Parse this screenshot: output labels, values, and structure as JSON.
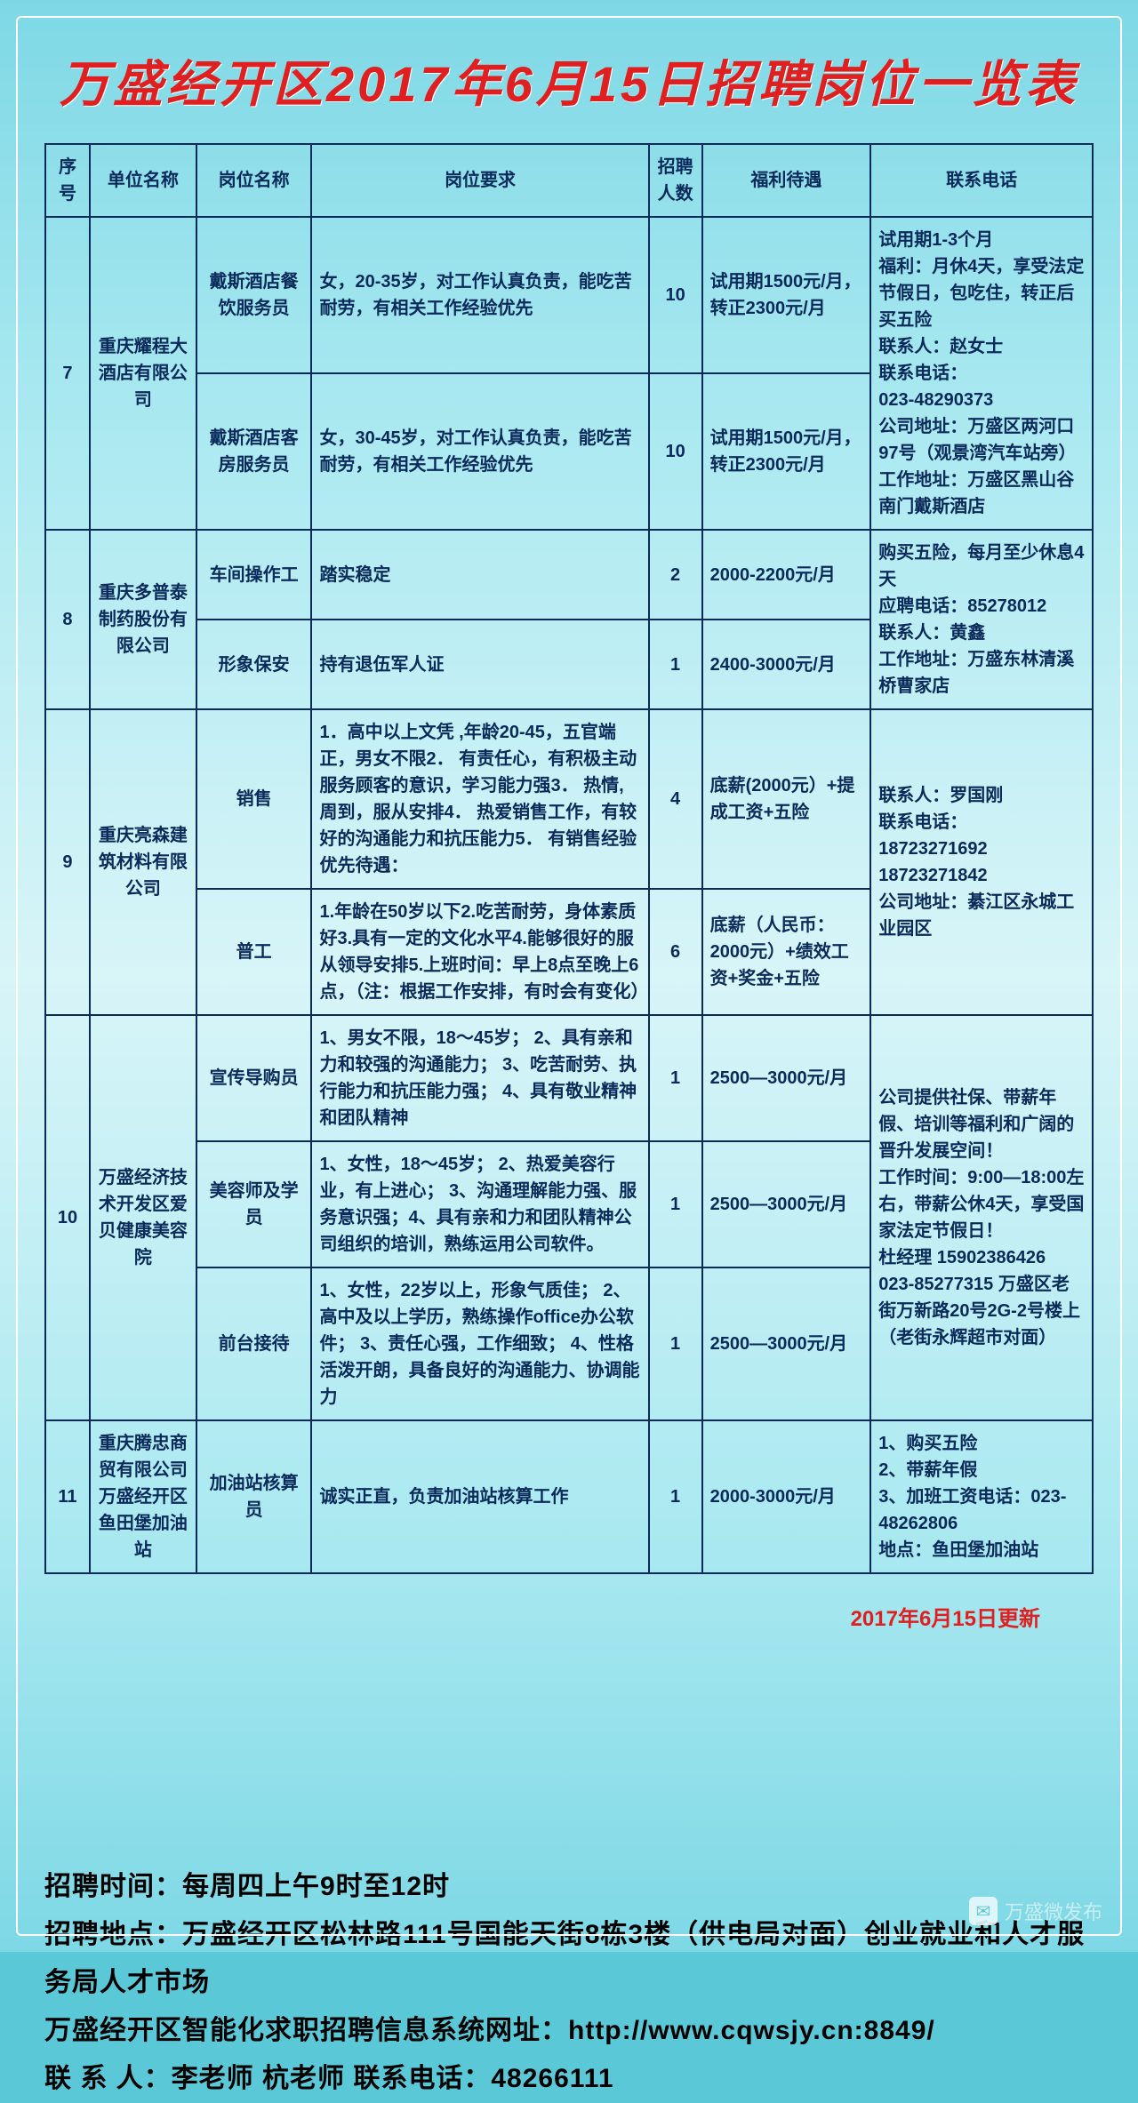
{
  "title": "万盛经开区2017年6月15日招聘岗位一览表",
  "headers": {
    "seq": "序号",
    "company": "单位名称",
    "position": "岗位名称",
    "requirement": "岗位要求",
    "count": "招聘人数",
    "salary": "福利待遇",
    "contact": "联系电话"
  },
  "rows": [
    {
      "seq": "7",
      "company": "重庆耀程大酒店有限公司",
      "positions": [
        {
          "name": "戴斯酒店餐饮服务员",
          "req": "女，20-35岁，对工作认真负责，能吃苦耐劳，有相关工作经验优先",
          "count": "10",
          "salary": "试用期1500元/月，转正2300元/月"
        },
        {
          "name": "戴斯酒店客房服务员",
          "req": "女，30-45岁，对工作认真负责，能吃苦耐劳，有相关工作经验优先",
          "count": "10",
          "salary": "试用期1500元/月，转正2300元/月"
        }
      ],
      "contact": "试用期1-3个月\n福利：月休4天，享受法定节假日，包吃住，转正后买五险\n联系人：赵女士\n联系电话：\n023-48290373\n公司地址：万盛区两河口97号（观景湾汽车站旁）工作地址：万盛区黑山谷南门戴斯酒店"
    },
    {
      "seq": "8",
      "company": "重庆多普泰制药股份有限公司",
      "positions": [
        {
          "name": "车间操作工",
          "req": "踏实稳定",
          "count": "2",
          "salary": "2000-2200元/月"
        },
        {
          "name": "形象保安",
          "req": "持有退伍军人证",
          "count": "1",
          "salary": "2400-3000元/月"
        }
      ],
      "contact": "购买五险，每月至少休息4天\n应聘电话：85278012\n联系人：黄鑫\n工作地址：万盛东林清溪桥曹家店"
    },
    {
      "seq": "9",
      "company": "重庆亮森建筑材料有限公司",
      "positions": [
        {
          "name": "销售",
          "req": "1．高中以上文凭 ,年龄20-45，五官端正，男女不限2．  有责任心，有积极主动服务顾客的意识，学习能力强3．  热情, 周到，服从安排4．  热爱销售工作，有较好的沟通能力和抗压能力5．  有销售经验优先待遇：",
          "count": "4",
          "salary": "底薪(2000元）+提成工资+五险"
        },
        {
          "name": "普工",
          "req": "1.年龄在50岁以下2.吃苦耐劳，身体素质好3.具有一定的文化水平4.能够很好的服从领导安排5.上班时间：早上8点至晚上6点，（注：根据工作安排，有时会有变化）",
          "count": "6",
          "salary": "底薪（人民币：2000元）+绩效工资+奖金+五险"
        }
      ],
      "contact": "联系人：罗国刚\n联系电话：\n18723271692\n18723271842\n公司地址：綦江区永城工业园区"
    },
    {
      "seq": "10",
      "company": "万盛经济技术开发区爱贝健康美容院",
      "positions": [
        {
          "name": "宣传导购员",
          "req": "1、男女不限，18～45岁；  2、具有亲和力和较强的沟通能力；  3、吃苦耐劳、执行能力和抗压能力强；  4、具有敬业精神和团队精神",
          "count": "1",
          "salary": "2500—3000元/月"
        },
        {
          "name": "美容师及学员",
          "req": "1、女性，18～45岁；  2、热爱美容行业，有上进心；  3、沟通理解能力强、服务意识强；4、具有亲和力和团队精神公司组织的培训，熟练运用公司软件。",
          "count": "1",
          "salary": "2500—3000元/月"
        },
        {
          "name": "前台接待",
          "req": "1、女性，22岁以上，形象气质佳；  2、高中及以上学历，熟练操作office办公软件；  3、责任心强，工作细致；  4、性格活泼开朗，具备良好的沟通能力、协调能力",
          "count": "1",
          "salary": "2500—3000元/月"
        }
      ],
      "contact": "公司提供社保、带薪年假、培训等福利和广阔的晋升发展空间！\n工作时间：9:00—18:00左右，带薪公休4天，享受国家法定节假日！\n杜经理 15902386426\n023-85277315 万盛区老街万新路20号2G-2号楼上（老街永辉超市对面）"
    },
    {
      "seq": "11",
      "company": "重庆腾忠商贸有限公司万盛经开区鱼田堡加油站",
      "positions": [
        {
          "name": "加油站核算员",
          "req": "诚实正直，负责加油站核算工作",
          "count": "1",
          "salary": "2000-3000元/月"
        }
      ],
      "contact": "1、购买五险\n2、带薪年假\n3、加班工资电话：023-48262806\n地点：鱼田堡加油站"
    }
  ],
  "update": "2017年6月15日更新",
  "footer": {
    "l1": "招聘时间：每周四上午9时至12时",
    "l2": "招聘地点：万盛经开区松林路111号国能天街8栋3楼（供电局对面）创业就业和人才服务局人才市场",
    "l3": "万盛经开区智能化求职招聘信息系统网址：http://www.cqwsjy.cn:8849/",
    "l4": "联 系 人：李老师   杭老师    联系电话：48266111"
  },
  "watermark": "万盛微发布"
}
